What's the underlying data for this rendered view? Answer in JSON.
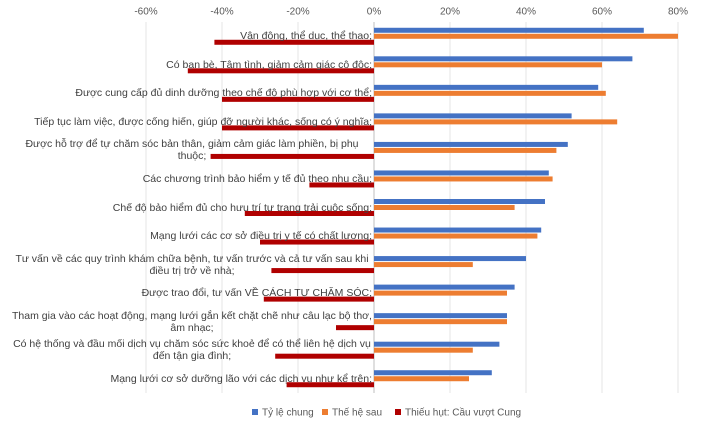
{
  "chart_data": {
    "type": "hbar",
    "categories": [
      "Vận động, thể dục, thể thao;",
      "Có bạn bè, Tâm tình, giảm cảm giác cô độc;",
      "Được cung cấp đủ dinh dưỡng theo chế độ phù hợp với cơ thể;",
      "Tiếp tục làm việc, được cống hiến, giúp đỡ người khác, sống có ý nghĩa;",
      "Được hỗ trợ để tự chăm sóc bản thân, giảm cảm giác làm phiền, bị phụ thuộc;",
      "Các chương trình bảo hiểm y tế đủ theo nhu cầu;",
      "Chế độ bảo hiểm đủ cho hưu trí tự trang trải cuộc sống;",
      "Mạng lưới các cơ sở điều trị y tế có chất lượng;",
      "Tư vấn về các quy trình khám chữa bệnh, tư vấn trước và cả tư vấn sau khi điều trị trở về nhà;",
      "Được trao đổi, tư vấn VỀ CÁCH TỰ CHĂM SÓC;",
      "Tham gia vào các hoạt động, mạng lưới gắn kết chặt chẽ như câu lạc bộ thơ, âm nhạc;",
      "Có hệ thống và đầu mối dịch vụ chăm sóc sức khoẻ để có thể liên hệ dịch vụ đến tận gia đình;",
      "Mạng lưới cơ sở dưỡng lão với các dịch vụ như kể trên;"
    ],
    "series": [
      {
        "name": "Tỷ lệ chung",
        "color": "#4472c4",
        "values": [
          71,
          68,
          59,
          52,
          51,
          46,
          45,
          44,
          40,
          37,
          35,
          33,
          31
        ]
      },
      {
        "name": "Thế hệ sau",
        "color": "#ed7d31",
        "values": [
          80,
          60,
          61,
          64,
          48,
          47,
          37,
          43,
          26,
          35,
          35,
          26,
          25
        ]
      },
      {
        "name": "Thiếu hụt: Cầu vượt Cung",
        "color": "#b00000",
        "values": [
          -42,
          -49,
          -40,
          -40,
          -43,
          -17,
          -34,
          -30,
          -27,
          -29,
          -10,
          -26,
          -23
        ]
      }
    ],
    "xlim": [
      -60,
      80
    ],
    "xticks": [
      {
        "value": -60,
        "label": "-60%"
      },
      {
        "value": -40,
        "label": "-40%"
      },
      {
        "value": -20,
        "label": "-20%"
      },
      {
        "value": 0,
        "label": "0%"
      },
      {
        "value": 20,
        "label": "20%"
      },
      {
        "value": 40,
        "label": "40%"
      },
      {
        "value": 60,
        "label": "60%"
      },
      {
        "value": 80,
        "label": "80%"
      }
    ],
    "grid": true,
    "legend": "bottom"
  }
}
